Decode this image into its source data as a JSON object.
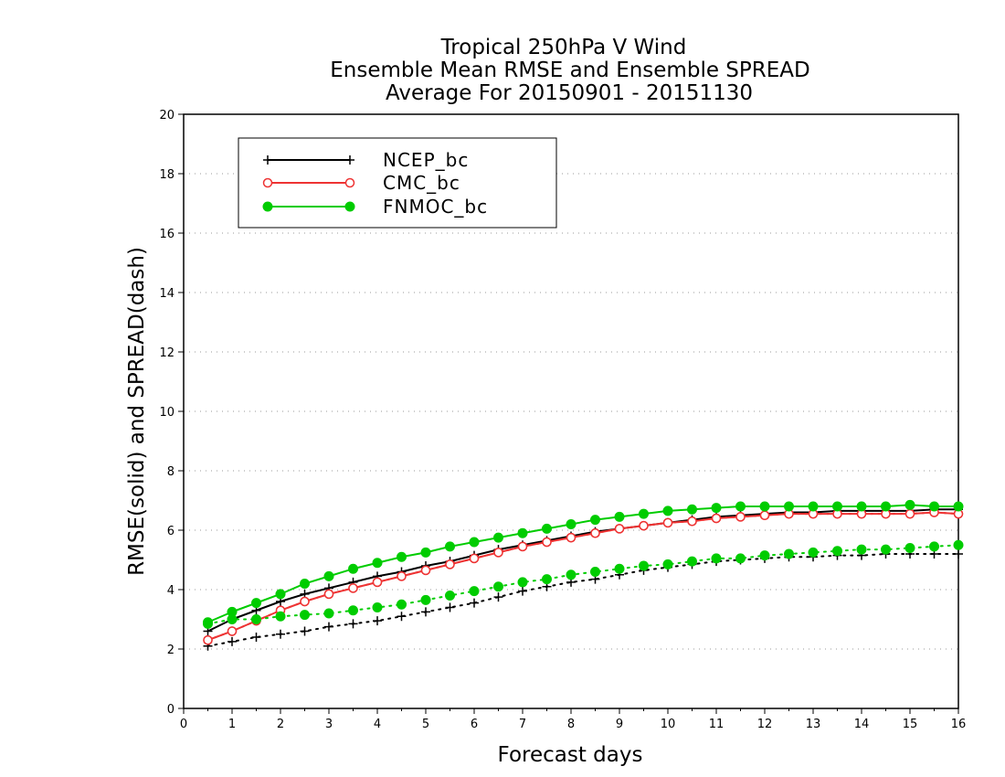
{
  "chart_data": {
    "type": "line",
    "title": [
      "Tropical 250hPa V Wind",
      "Ensemble Mean RMSE and Ensemble SPREAD",
      "Average For 20150901 - 20151130"
    ],
    "xlabel": "Forecast days",
    "ylabel": "RMSE(solid) and SPREAD(dash)",
    "xlim": [
      0,
      16
    ],
    "ylim": [
      0,
      20
    ],
    "xticks": [
      0,
      1,
      2,
      3,
      4,
      5,
      6,
      7,
      8,
      9,
      10,
      11,
      12,
      13,
      14,
      15,
      16
    ],
    "yticks": [
      0,
      2,
      4,
      6,
      8,
      10,
      12,
      14,
      16,
      18,
      20
    ],
    "grid": "horizontal dotted",
    "legend_position": "top-left",
    "x": [
      0.5,
      1,
      1.5,
      2,
      2.5,
      3,
      3.5,
      4,
      4.5,
      5,
      5.5,
      6,
      6.5,
      7,
      7.5,
      8,
      8.5,
      9,
      9.5,
      10,
      10.5,
      11,
      11.5,
      12,
      12.5,
      13,
      13.5,
      14,
      14.5,
      15,
      15.5,
      16
    ],
    "series": [
      {
        "name": "NCEP_bc",
        "color": "#000000",
        "marker": "plus",
        "rmse": [
          2.6,
          3.0,
          3.3,
          3.6,
          3.85,
          4.05,
          4.25,
          4.45,
          4.6,
          4.8,
          4.95,
          5.15,
          5.35,
          5.5,
          5.65,
          5.8,
          5.95,
          6.05,
          6.15,
          6.25,
          6.35,
          6.45,
          6.5,
          6.55,
          6.6,
          6.6,
          6.65,
          6.65,
          6.65,
          6.65,
          6.7,
          6.7
        ],
        "spread": [
          2.1,
          2.25,
          2.4,
          2.5,
          2.6,
          2.75,
          2.85,
          2.95,
          3.1,
          3.25,
          3.4,
          3.55,
          3.75,
          3.95,
          4.1,
          4.25,
          4.35,
          4.5,
          4.65,
          4.75,
          4.85,
          4.95,
          5.0,
          5.05,
          5.1,
          5.1,
          5.15,
          5.15,
          5.2,
          5.2,
          5.2,
          5.2
        ]
      },
      {
        "name": "CMC_bc",
        "color": "#ee3333",
        "marker": "open-circle",
        "rmse": [
          2.3,
          2.6,
          2.95,
          3.3,
          3.6,
          3.85,
          4.05,
          4.25,
          4.45,
          4.65,
          4.85,
          5.05,
          5.25,
          5.45,
          5.6,
          5.75,
          5.9,
          6.05,
          6.15,
          6.25,
          6.3,
          6.4,
          6.45,
          6.5,
          6.55,
          6.55,
          6.55,
          6.55,
          6.55,
          6.55,
          6.6,
          6.55
        ],
        "spread": [
          2.3,
          2.6,
          2.95,
          3.3,
          3.6,
          3.85,
          4.05,
          4.25,
          4.45,
          4.65,
          4.85,
          5.05,
          5.25,
          5.45,
          5.6,
          5.75,
          5.9,
          6.05,
          6.15,
          6.25,
          6.3,
          6.4,
          6.45,
          6.5,
          6.55,
          6.55,
          6.55,
          6.55,
          6.55,
          6.55,
          6.6,
          6.55
        ]
      },
      {
        "name": "FNMOC_bc",
        "color": "#00cc00",
        "marker": "filled-circle",
        "rmse": [
          2.9,
          3.25,
          3.55,
          3.85,
          4.2,
          4.45,
          4.7,
          4.9,
          5.1,
          5.25,
          5.45,
          5.6,
          5.75,
          5.9,
          6.05,
          6.2,
          6.35,
          6.45,
          6.55,
          6.65,
          6.7,
          6.75,
          6.8,
          6.8,
          6.8,
          6.8,
          6.8,
          6.8,
          6.8,
          6.85,
          6.8,
          6.8
        ],
        "spread": [
          2.85,
          3.0,
          3.0,
          3.1,
          3.15,
          3.2,
          3.3,
          3.4,
          3.5,
          3.65,
          3.8,
          3.95,
          4.1,
          4.25,
          4.35,
          4.5,
          4.6,
          4.7,
          4.8,
          4.85,
          4.95,
          5.05,
          5.05,
          5.15,
          5.2,
          5.25,
          5.3,
          5.35,
          5.35,
          5.4,
          5.45,
          5.5
        ]
      }
    ]
  }
}
